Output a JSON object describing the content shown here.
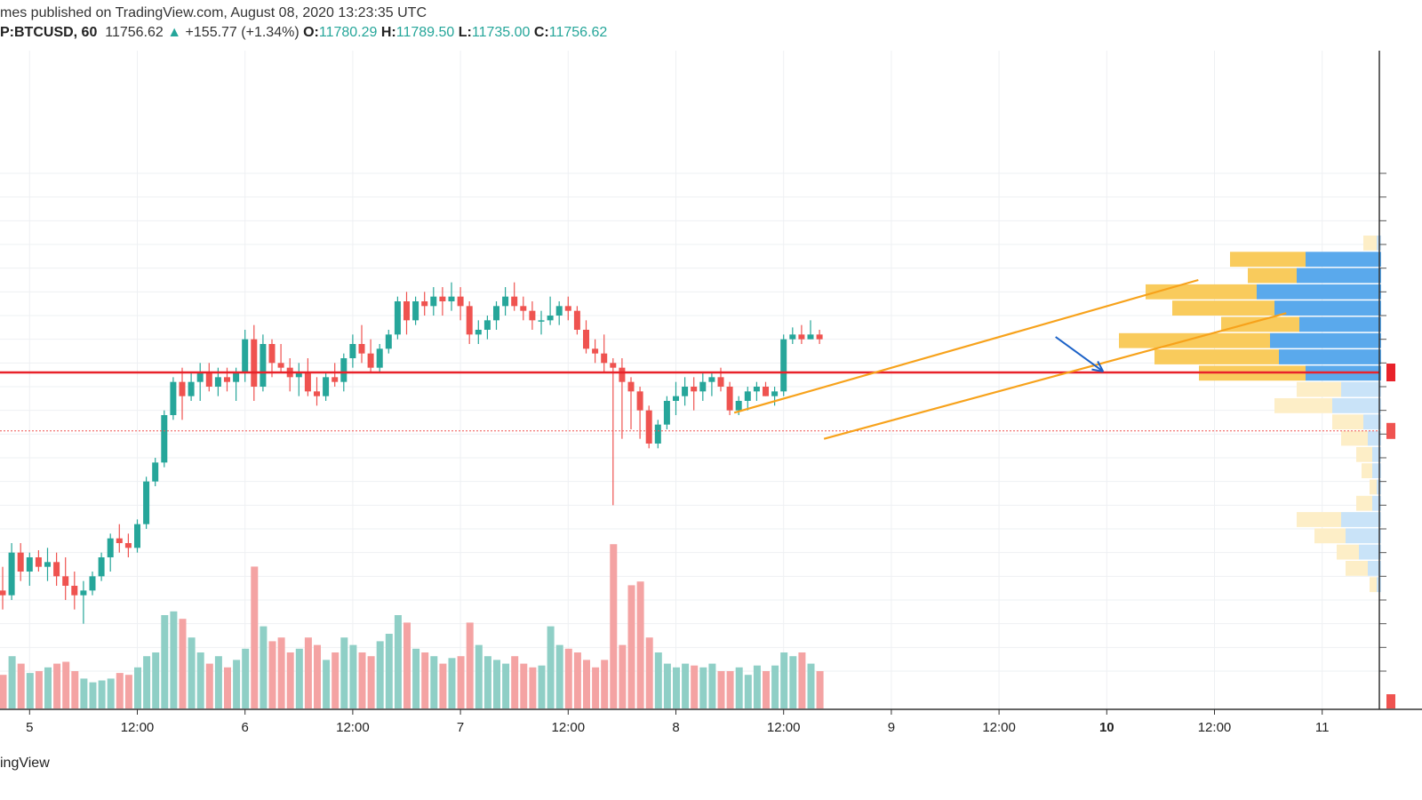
{
  "header": {
    "author_line": "mes published on TradingView.com, August 08, 2020 13:23:35 UTC",
    "symbol": "P:BTCUSD, 60",
    "last": "11756.62",
    "change_arrow": "▲",
    "change": "+155.77 (+1.34%)",
    "o_label": "O:",
    "o_value": "11780.29",
    "h_label": "H:",
    "h_value": "11789.50",
    "l_label": "L:",
    "l_value": "11735.00",
    "c_label": "C:",
    "c_value": "11756.62"
  },
  "footer": {
    "brand": "ingView"
  },
  "colors": {
    "bull": "#26a69a",
    "bear": "#ef5350",
    "bull_vol": "#8fcfc6",
    "bear_vol": "#f4a3a3",
    "support_line": "#e8222a",
    "channel": "#f7a21b",
    "arrow": "#1c62c7",
    "profile_up": "#f9cb5c",
    "profile_down": "#5aa9ec",
    "profile_up_light": "#fdeec7",
    "profile_down_light": "#c9e3f8"
  },
  "chart_data": {
    "type": "candlestick",
    "symbol": "P:BTCUSD",
    "interval": "60",
    "x_ticks": [
      {
        "label": "5",
        "bar": 3,
        "bold": false
      },
      {
        "label": "12:00",
        "bar": 15,
        "bold": false
      },
      {
        "label": "6",
        "bar": 27,
        "bold": false
      },
      {
        "label": "12:00",
        "bar": 39,
        "bold": false
      },
      {
        "label": "7",
        "bar": 51,
        "bold": false
      },
      {
        "label": "12:00",
        "bar": 63,
        "bold": false
      },
      {
        "label": "8",
        "bar": 75,
        "bold": false
      },
      {
        "label": "12:00",
        "bar": 87,
        "bold": false
      },
      {
        "label": "9",
        "bar": 99,
        "bold": false
      },
      {
        "label": "12:00",
        "bar": 111,
        "bold": false
      },
      {
        "label": "10",
        "bar": 123,
        "bold": true
      },
      {
        "label": "12:00",
        "bar": 135,
        "bold": false
      },
      {
        "label": "11",
        "bar": 147,
        "bold": false
      }
    ],
    "ohlcv": [
      [
        11420,
        11470,
        11380,
        11410,
        90
      ],
      [
        11410,
        11520,
        11400,
        11500,
        140
      ],
      [
        11500,
        11520,
        11440,
        11460,
        120
      ],
      [
        11460,
        11500,
        11430,
        11490,
        95
      ],
      [
        11490,
        11505,
        11460,
        11470,
        100
      ],
      [
        11470,
        11510,
        11440,
        11480,
        110
      ],
      [
        11480,
        11500,
        11430,
        11450,
        120
      ],
      [
        11450,
        11490,
        11400,
        11430,
        125
      ],
      [
        11430,
        11460,
        11380,
        11410,
        100
      ],
      [
        11410,
        11440,
        11350,
        11420,
        80
      ],
      [
        11420,
        11460,
        11410,
        11450,
        70
      ],
      [
        11450,
        11500,
        11440,
        11490,
        75
      ],
      [
        11490,
        11540,
        11460,
        11530,
        80
      ],
      [
        11530,
        11560,
        11500,
        11520,
        95
      ],
      [
        11520,
        11540,
        11490,
        11510,
        90
      ],
      [
        11510,
        11570,
        11500,
        11560,
        110
      ],
      [
        11560,
        11660,
        11550,
        11650,
        140
      ],
      [
        11650,
        11700,
        11640,
        11690,
        150
      ],
      [
        11690,
        11800,
        11680,
        11790,
        250
      ],
      [
        11790,
        11870,
        11780,
        11860,
        260
      ],
      [
        11860,
        11890,
        11780,
        11830,
        240
      ],
      [
        11830,
        11880,
        11820,
        11860,
        190
      ],
      [
        11860,
        11900,
        11820,
        11880,
        150
      ],
      [
        11880,
        11900,
        11840,
        11850,
        120
      ],
      [
        11850,
        11890,
        11830,
        11870,
        140
      ],
      [
        11870,
        11890,
        11840,
        11860,
        110
      ],
      [
        11860,
        11890,
        11820,
        11880,
        130
      ],
      [
        11880,
        11970,
        11860,
        11950,
        160
      ],
      [
        11950,
        11980,
        11820,
        11850,
        380
      ],
      [
        11850,
        11960,
        11840,
        11940,
        220
      ],
      [
        11940,
        11950,
        11870,
        11900,
        180
      ],
      [
        11900,
        11940,
        11880,
        11890,
        190
      ],
      [
        11890,
        11910,
        11840,
        11870,
        150
      ],
      [
        11870,
        11900,
        11830,
        11880,
        160
      ],
      [
        11880,
        11910,
        11830,
        11840,
        190
      ],
      [
        11840,
        11870,
        11810,
        11830,
        170
      ],
      [
        11830,
        11880,
        11820,
        11870,
        130
      ],
      [
        11870,
        11900,
        11850,
        11860,
        150
      ],
      [
        11860,
        11920,
        11840,
        11910,
        190
      ],
      [
        11910,
        11960,
        11890,
        11940,
        170
      ],
      [
        11940,
        11980,
        11900,
        11920,
        150
      ],
      [
        11920,
        11950,
        11880,
        11890,
        140
      ],
      [
        11890,
        11940,
        11880,
        11930,
        180
      ],
      [
        11930,
        11970,
        11920,
        11960,
        200
      ],
      [
        11960,
        12040,
        11950,
        12030,
        250
      ],
      [
        12030,
        12050,
        11960,
        11990,
        230
      ],
      [
        11990,
        12040,
        11980,
        12030,
        160
      ],
      [
        12030,
        12050,
        12000,
        12020,
        150
      ],
      [
        12020,
        12060,
        12000,
        12040,
        140
      ],
      [
        12040,
        12060,
        12000,
        12030,
        120
      ],
      [
        12030,
        12070,
        12010,
        12040,
        135
      ],
      [
        12040,
        12060,
        11990,
        12020,
        140
      ],
      [
        12020,
        12030,
        11940,
        11960,
        230
      ],
      [
        11960,
        11990,
        11940,
        11970,
        170
      ],
      [
        11970,
        12000,
        11950,
        11990,
        140
      ],
      [
        11990,
        12030,
        11970,
        12020,
        130
      ],
      [
        12020,
        12060,
        12000,
        12040,
        120
      ],
      [
        12040,
        12070,
        12010,
        12020,
        140
      ],
      [
        12020,
        12040,
        11990,
        12010,
        120
      ],
      [
        12010,
        12030,
        11970,
        11990,
        110
      ],
      [
        11990,
        12010,
        11960,
        11990,
        115
      ],
      [
        11990,
        12040,
        11980,
        12000,
        220
      ],
      [
        12000,
        12030,
        11980,
        12020,
        170
      ],
      [
        12020,
        12040,
        11990,
        12010,
        160
      ],
      [
        12010,
        12020,
        11960,
        11970,
        150
      ],
      [
        11970,
        11990,
        11920,
        11930,
        130
      ],
      [
        11930,
        11950,
        11900,
        11920,
        110
      ],
      [
        11920,
        11960,
        11880,
        11900,
        130
      ],
      [
        11900,
        11910,
        11600,
        11890,
        440
      ],
      [
        11890,
        11910,
        11740,
        11860,
        170
      ],
      [
        11860,
        11870,
        11760,
        11840,
        330
      ],
      [
        11840,
        11850,
        11740,
        11800,
        340
      ],
      [
        11800,
        11810,
        11720,
        11730,
        190
      ],
      [
        11730,
        11780,
        11720,
        11770,
        150
      ],
      [
        11770,
        11830,
        11760,
        11820,
        120
      ],
      [
        11820,
        11860,
        11790,
        11830,
        110
      ],
      [
        11830,
        11870,
        11810,
        11850,
        120
      ],
      [
        11850,
        11870,
        11800,
        11840,
        115
      ],
      [
        11840,
        11880,
        11820,
        11860,
        110
      ],
      [
        11860,
        11880,
        11830,
        11870,
        120
      ],
      [
        11870,
        11890,
        11840,
        11850,
        100
      ],
      [
        11850,
        11860,
        11790,
        11800,
        100
      ],
      [
        11800,
        11830,
        11790,
        11820,
        110
      ],
      [
        11820,
        11850,
        11800,
        11840,
        90
      ],
      [
        11840,
        11860,
        11820,
        11850,
        115
      ],
      [
        11850,
        11860,
        11830,
        11830,
        100
      ],
      [
        11830,
        11850,
        11810,
        11840,
        115
      ],
      [
        11840,
        11960,
        11830,
        11950,
        150
      ],
      [
        11950,
        11975,
        11940,
        11960,
        140
      ],
      [
        11960,
        11980,
        11940,
        11950,
        150
      ],
      [
        11950,
        11990,
        11950,
        11960,
        120
      ],
      [
        11960,
        11970,
        11940,
        11950,
        100
      ]
    ],
    "support_level": 11880,
    "channel": [
      {
        "x1": 81.5,
        "y1": 11795,
        "x2": 133.2,
        "y2": 12075
      },
      {
        "x1": 91.5,
        "y1": 11740,
        "x2": 143.0,
        "y2": 12005
      }
    ],
    "arrow": {
      "x1": 117.3,
      "y1": 11955,
      "x2": 122.6,
      "y2": 11882
    },
    "volume_profile": [
      {
        "up": 15,
        "down": 5,
        "light": true
      },
      {
        "up": 85,
        "down": 85
      },
      {
        "up": 55,
        "down": 95
      },
      {
        "up": 125,
        "down": 140
      },
      {
        "up": 115,
        "down": 120
      },
      {
        "up": 88,
        "down": 92
      },
      {
        "up": 170,
        "down": 125
      },
      {
        "up": 140,
        "down": 115
      },
      {
        "up": 120,
        "down": 85
      },
      {
        "up": 50,
        "down": 45,
        "light": true
      },
      {
        "up": 65,
        "down": 55,
        "light": true
      },
      {
        "up": 35,
        "down": 20,
        "light": true
      },
      {
        "up": 30,
        "down": 15,
        "light": true
      },
      {
        "up": 18,
        "down": 10,
        "light": true
      },
      {
        "up": 12,
        "down": 10,
        "light": true
      },
      {
        "up": 8,
        "down": 5,
        "light": true
      },
      {
        "up": 18,
        "down": 10,
        "light": true
      },
      {
        "up": 50,
        "down": 45,
        "light": true
      },
      {
        "up": 35,
        "down": 40,
        "light": true
      },
      {
        "up": 25,
        "down": 25,
        "light": true
      },
      {
        "up": 25,
        "down": 15,
        "light": true
      },
      {
        "up": 8,
        "down": 5,
        "light": true
      }
    ]
  }
}
